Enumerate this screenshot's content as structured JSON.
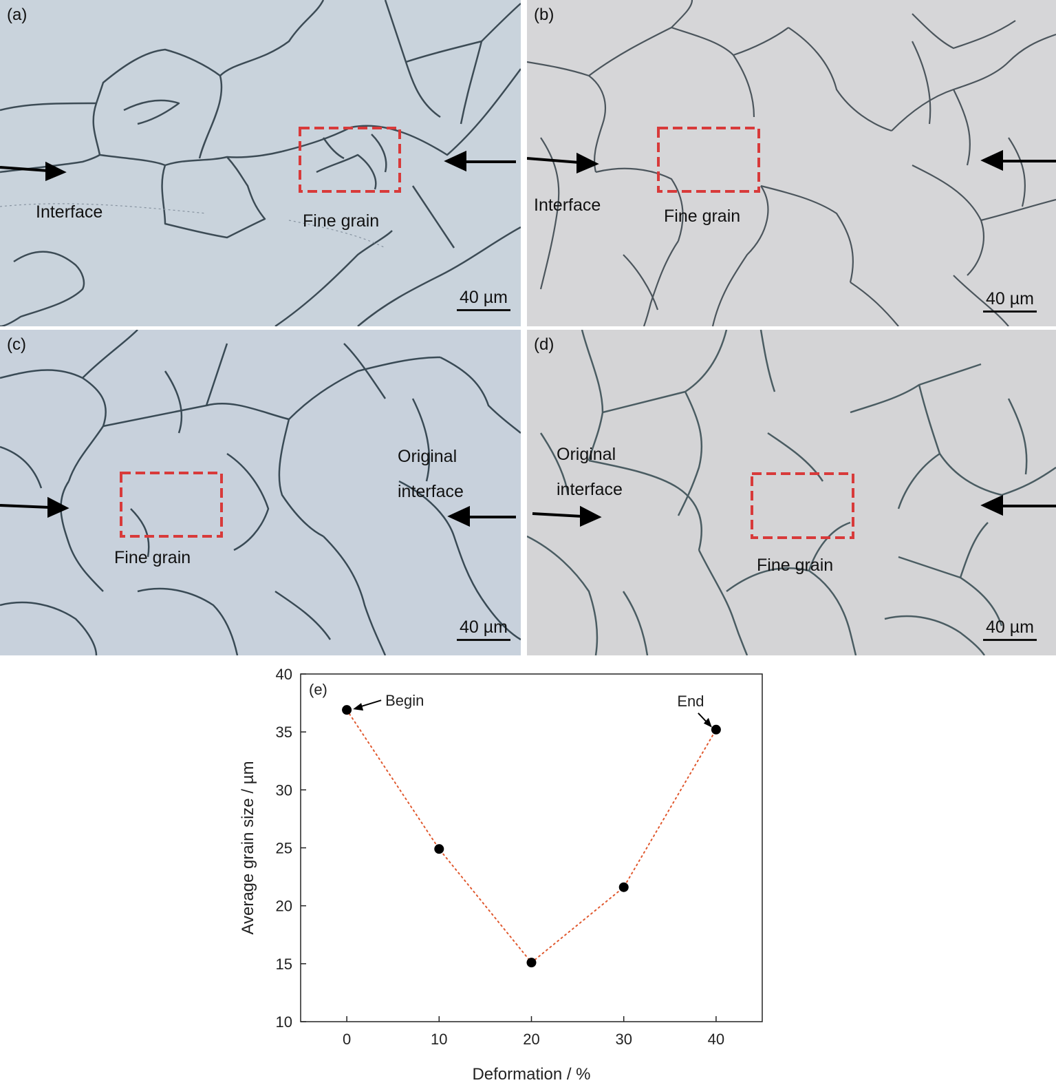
{
  "panels": [
    {
      "label": "(a)",
      "annotations": [
        "Interface",
        "Fine grain"
      ],
      "scale_bar": "40 µm"
    },
    {
      "label": "(b)",
      "annotations": [
        "Interface",
        "Fine grain"
      ],
      "scale_bar": "40 µm"
    },
    {
      "label": "(c)",
      "annotations": [
        "Original\ninterface",
        "Fine grain"
      ],
      "scale_bar": "40 µm"
    },
    {
      "label": "(d)",
      "annotations": [
        "Original\ninterface",
        "Fine grain"
      ],
      "scale_bar": "40 µm"
    }
  ],
  "colors": {
    "panel_a_bg": "#c9d3dc",
    "panel_b_bg": "#d6d6d8",
    "panel_c_bg": "#c8d1dc",
    "panel_d_bg": "#d4d4d6",
    "grain_boundary": "#3c4b55",
    "highlight_box": "#d83a3a",
    "trend_line": "#e0582e",
    "marker": "#000000"
  },
  "chart_data": {
    "type": "scatter",
    "panel_label": "(e)",
    "xlabel": "Deformation / %",
    "ylabel": "Average grain size / µm",
    "xlim": [
      -5,
      45
    ],
    "ylim": [
      10,
      40
    ],
    "xticks": [
      0,
      10,
      20,
      30,
      40
    ],
    "yticks": [
      10,
      15,
      20,
      25,
      30,
      35,
      40
    ],
    "x": [
      0,
      10,
      20,
      30,
      40
    ],
    "y": [
      36.9,
      24.9,
      15.1,
      21.6,
      35.2
    ],
    "line_style": "dotted",
    "annotations": [
      {
        "text": "Begin",
        "x": 0,
        "y": 36.9
      },
      {
        "text": "End",
        "x": 40,
        "y": 35.2
      }
    ]
  }
}
